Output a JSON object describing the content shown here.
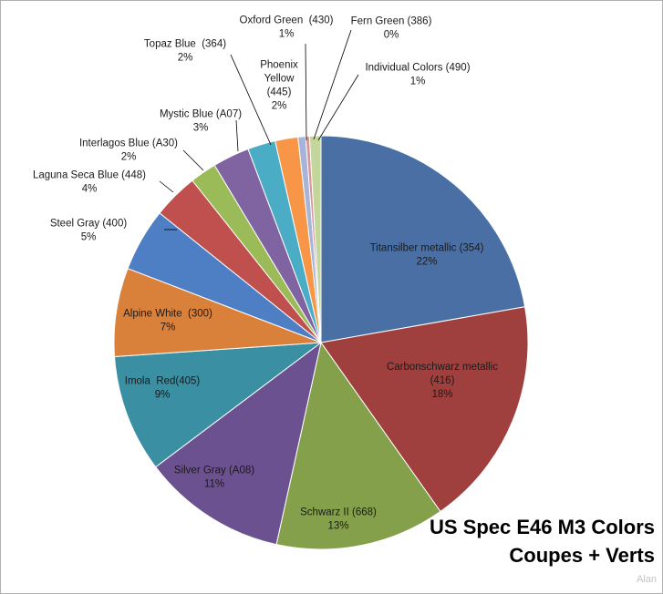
{
  "chart_data": {
    "type": "pie",
    "title_lines": [
      "US Spec E46 M3 Colors",
      "Coupes + Verts"
    ],
    "watermark": "Alan",
    "slices": [
      {
        "label_lines": [
          "Titansilber metallic (354)"
        ],
        "pct_label": "22%",
        "value": 22.5,
        "color": "#4A6FA5"
      },
      {
        "label_lines": [
          "Carbonschwarz metallic",
          "(416)"
        ],
        "pct_label": "18%",
        "value": 18.2,
        "color": "#A0403E"
      },
      {
        "label_lines": [
          "Schwarz II (668)"
        ],
        "pct_label": "13%",
        "value": 13.4,
        "color": "#84A04A"
      },
      {
        "label_lines": [
          "Silver Gray (A08)"
        ],
        "pct_label": "11%",
        "value": 11.4,
        "color": "#6C5190"
      },
      {
        "label_lines": [
          "Imola  Red(405)"
        ],
        "pct_label": "9%",
        "value": 9.3,
        "color": "#3A8FA3"
      },
      {
        "label_lines": [
          "Alpine White  (300)"
        ],
        "pct_label": "7%",
        "value": 7.0,
        "color": "#D9803A"
      },
      {
        "label_lines": [
          "Steel Gray (400)"
        ],
        "pct_label": "5%",
        "value": 5.0,
        "color": "#4E7FC4"
      },
      {
        "label_lines": [
          "Laguna Seca Blue (448)"
        ],
        "pct_label": "4%",
        "value": 3.6,
        "color": "#C0504D"
      },
      {
        "label_lines": [
          "Interlagos Blue (A30)"
        ],
        "pct_label": "2%",
        "value": 2.1,
        "color": "#9BBB59"
      },
      {
        "label_lines": [
          "Mystic Blue (A07)"
        ],
        "pct_label": "3%",
        "value": 2.9,
        "color": "#8064A2"
      },
      {
        "label_lines": [
          "Topaz Blue  (364)"
        ],
        "pct_label": "2%",
        "value": 2.2,
        "color": "#4BACC6"
      },
      {
        "label_lines": [
          "Phoenix",
          "Yellow",
          "(445)"
        ],
        "pct_label": "2%",
        "value": 1.8,
        "color": "#F79646"
      },
      {
        "label_lines": [
          "Oxford Green  (430)"
        ],
        "pct_label": "1%",
        "value": 0.6,
        "color": "#A5B4D8"
      },
      {
        "label_lines": [
          "Fern Green (386)"
        ],
        "pct_label": "0%",
        "value": 0.3,
        "color": "#D99694"
      },
      {
        "label_lines": [
          "Individual Colors (490)"
        ],
        "pct_label": "1%",
        "value": 0.9,
        "color": "#C3D69B"
      }
    ]
  }
}
